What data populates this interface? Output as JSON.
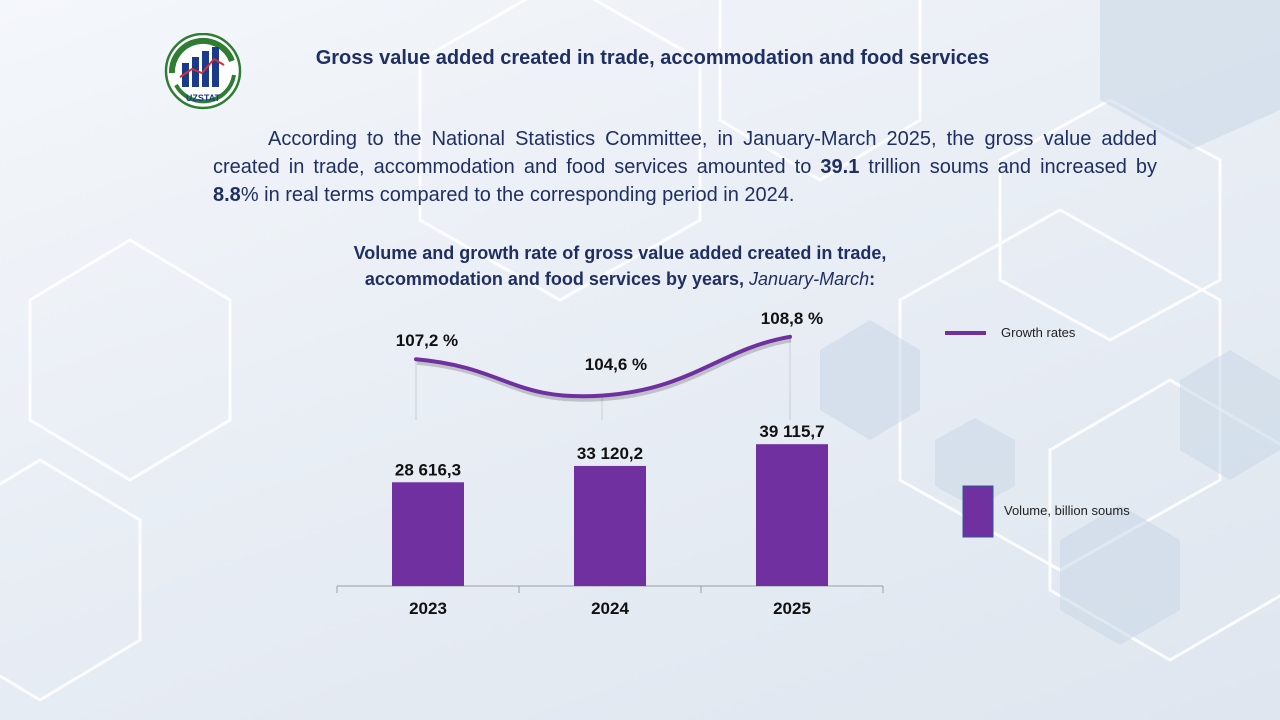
{
  "title": "Gross value added created in trade, accommodation and food services",
  "logo": {
    "text": "UZSTAT"
  },
  "paragraph": {
    "part1": "According to the National Statistics Committee, in January-March 2025, the gross value added created in trade, accommodation and food services amounted to ",
    "value1": "39.1",
    "part2": " trillion soums and increased by ",
    "value2": "8.8",
    "part3": "% in real terms compared to the corresponding period in 2024."
  },
  "chart_title": {
    "main": "Volume and growth rate of gross value added created in trade, accommodation and food services by years, ",
    "period": "January-March",
    "suffix": ":"
  },
  "colors": {
    "bar": "#7030a0",
    "line": "#7030a0",
    "text_dark": "#1f2f63"
  },
  "chart_data": {
    "type": "bar",
    "categories": [
      "2023",
      "2024",
      "2025"
    ],
    "series": [
      {
        "name": "Volume, billion soums",
        "type": "bar",
        "values": [
          28616.3,
          33120.2,
          39115.7
        ],
        "labels": [
          "28 616,3",
          "33 120,2",
          "39 115,7"
        ]
      },
      {
        "name": "Growth rates",
        "type": "line",
        "values": [
          107.2,
          104.6,
          108.8
        ],
        "labels": [
          "107,2 %",
          "104,6 %",
          "108,8 %"
        ]
      }
    ],
    "legend": [
      {
        "name": "Growth rates",
        "marker": "line"
      },
      {
        "name": "Volume, billion soums",
        "marker": "bar"
      }
    ],
    "legend_position": "right",
    "grid": false
  }
}
